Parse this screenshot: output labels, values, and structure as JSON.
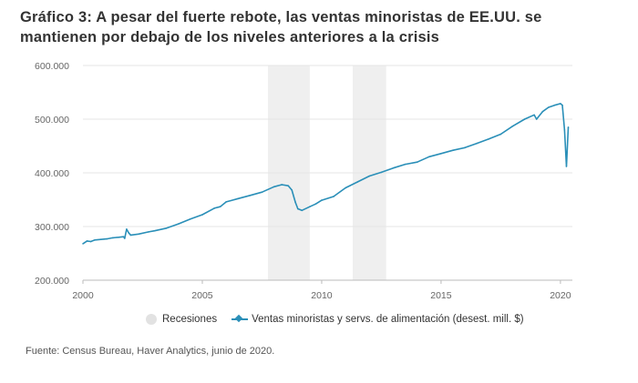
{
  "title": "Gráfico 3: A pesar del fuerte rebote, las ventas minoristas de EE.UU. se mantienen por debajo de los niveles anteriores a la crisis",
  "source": "Fuente: Census Bureau, Haver Analytics, junio de 2020.",
  "legend": {
    "recessions": "Recesiones",
    "series": "Ventas minoristas y servs. de alimentación (desest. mill. $)"
  },
  "colors": {
    "line": "#2a8fb8",
    "recession": "#efefef",
    "grid": "#e6e6e6"
  },
  "chart_data": {
    "type": "line",
    "ylim": [
      200000,
      600000
    ],
    "xlim": [
      2000,
      2020.5
    ],
    "y_ticks": [
      {
        "value": 200000,
        "label": "200.000"
      },
      {
        "value": 300000,
        "label": "300.000"
      },
      {
        "value": 400000,
        "label": "400.000"
      },
      {
        "value": 500000,
        "label": "500.000"
      },
      {
        "value": 600000,
        "label": "600.000"
      }
    ],
    "x_ticks": [
      {
        "value": 2000,
        "label": "2000"
      },
      {
        "value": 2005,
        "label": "2005"
      },
      {
        "value": 2010,
        "label": "2010"
      },
      {
        "value": 2015,
        "label": "2015"
      },
      {
        "value": 2020,
        "label": "2020"
      }
    ],
    "recession_bands": [
      [
        2007.75,
        2009.5
      ],
      [
        2011.3,
        2012.7
      ]
    ],
    "grid": true,
    "legend_position": "bottom",
    "series": [
      {
        "name": "Ventas minoristas y servs. de alimentación (desest. mill. $)",
        "points": [
          [
            2000.0,
            268000
          ],
          [
            2000.17,
            273000
          ],
          [
            2000.33,
            272000
          ],
          [
            2000.5,
            275000
          ],
          [
            2000.75,
            276000
          ],
          [
            2001.0,
            277000
          ],
          [
            2001.25,
            279000
          ],
          [
            2001.5,
            280000
          ],
          [
            2001.7,
            281000
          ],
          [
            2001.75,
            278000
          ],
          [
            2001.83,
            295000
          ],
          [
            2001.92,
            288000
          ],
          [
            2002.0,
            284000
          ],
          [
            2002.33,
            286000
          ],
          [
            2002.75,
            290000
          ],
          [
            2003.0,
            292000
          ],
          [
            2003.5,
            297000
          ],
          [
            2004.0,
            305000
          ],
          [
            2004.5,
            314000
          ],
          [
            2005.0,
            322000
          ],
          [
            2005.5,
            334000
          ],
          [
            2005.75,
            337000
          ],
          [
            2006.0,
            346000
          ],
          [
            2006.5,
            352000
          ],
          [
            2007.0,
            358000
          ],
          [
            2007.5,
            364000
          ],
          [
            2008.0,
            374000
          ],
          [
            2008.33,
            378000
          ],
          [
            2008.6,
            376000
          ],
          [
            2008.75,
            368000
          ],
          [
            2008.9,
            345000
          ],
          [
            2009.0,
            333000
          ],
          [
            2009.17,
            330000
          ],
          [
            2009.5,
            337000
          ],
          [
            2009.75,
            342000
          ],
          [
            2010.0,
            349000
          ],
          [
            2010.5,
            356000
          ],
          [
            2011.0,
            372000
          ],
          [
            2011.5,
            383000
          ],
          [
            2012.0,
            394000
          ],
          [
            2012.5,
            401000
          ],
          [
            2013.0,
            409000
          ],
          [
            2013.5,
            416000
          ],
          [
            2014.0,
            420000
          ],
          [
            2014.5,
            430000
          ],
          [
            2015.0,
            436000
          ],
          [
            2015.5,
            442000
          ],
          [
            2016.0,
            447000
          ],
          [
            2016.5,
            455000
          ],
          [
            2017.0,
            463000
          ],
          [
            2017.5,
            472000
          ],
          [
            2018.0,
            487000
          ],
          [
            2018.5,
            500000
          ],
          [
            2018.9,
            508000
          ],
          [
            2019.0,
            500000
          ],
          [
            2019.25,
            514000
          ],
          [
            2019.5,
            522000
          ],
          [
            2019.75,
            526000
          ],
          [
            2020.0,
            529000
          ],
          [
            2020.08,
            526000
          ],
          [
            2020.17,
            480000
          ],
          [
            2020.25,
            412000
          ],
          [
            2020.33,
            485000
          ]
        ]
      }
    ]
  }
}
